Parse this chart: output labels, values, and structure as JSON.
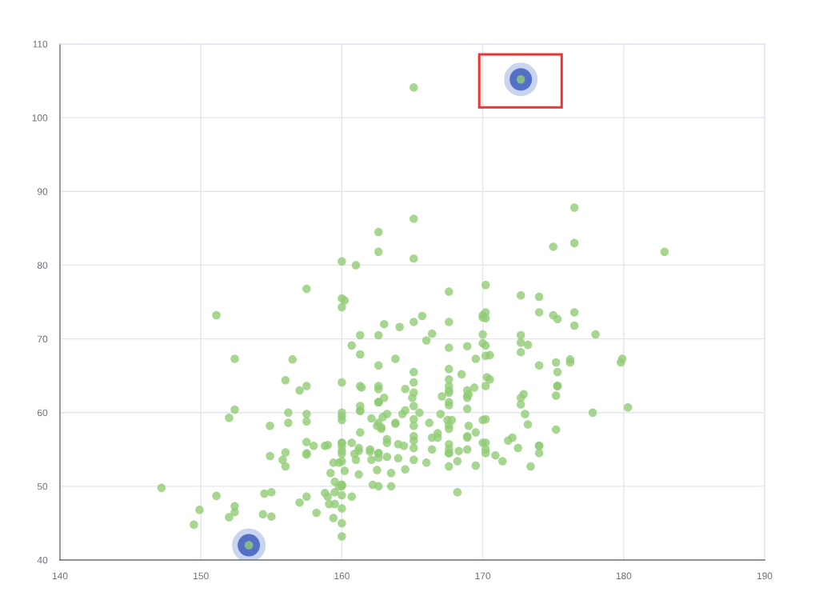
{
  "chart_data": {
    "type": "scatter",
    "xlim": [
      140,
      190
    ],
    "ylim": [
      40,
      110
    ],
    "xticks": [
      140,
      150,
      160,
      170,
      180,
      190
    ],
    "yticks": [
      40,
      50,
      60,
      70,
      80,
      90,
      100,
      110
    ],
    "grid": true,
    "marker": "circle",
    "series": [
      {
        "color": "#5470c6",
        "x": [
          172.7,
          153.4
        ],
        "values": [
          105.2,
          42.0
        ]
      },
      {
        "color": "#91cc75",
        "x": [
          161.2,
          167.5,
          159.5,
          157.0,
          155.8,
          170.0,
          159.1,
          166.0,
          176.2,
          160.2,
          172.5,
          170.9,
          172.9,
          153.4,
          160.0,
          147.2,
          168.2,
          175.0,
          157.0,
          167.6,
          159.5,
          175.0,
          166.8,
          176.5,
          170.2,
          174.0,
          173.0,
          179.9,
          170.5,
          160.0,
          154.4,
          162.0,
          176.5,
          160.0,
          152.0,
          162.1,
          170.0,
          160.2,
          161.3,
          166.4,
          168.9,
          163.8,
          167.6,
          160.0,
          161.3,
          167.6,
          165.1,
          160.0,
          170.0,
          157.5,
          167.6,
          160.7,
          163.2,
          152.4,
          157.5,
          168.3,
          180.3,
          165.5,
          165.0,
          164.5,
          156.0,
          160.0,
          163.0,
          165.7,
          161.0,
          162.0,
          166.0,
          174.0,
          172.7,
          167.6,
          151.1,
          164.5,
          163.5,
          152.0,
          169.0,
          164.0,
          161.2,
          155.0,
          170.0,
          176.2,
          170.0,
          162.5,
          170.3,
          164.1,
          169.5,
          163.2,
          154.5,
          159.8,
          173.2,
          170.0,
          161.4,
          169.0,
          166.2,
          159.4,
          162.5,
          159.0,
          162.8,
          159.0,
          179.8,
          162.9,
          161.0,
          151.1,
          168.2,
          168.9,
          173.2,
          171.8,
          178.0,
          164.3,
          163.0,
          168.5,
          166.8,
          172.7,
          163.5,
          169.4,
          167.8,
          159.5,
          167.6,
          161.2,
          160.0,
          163.2,
          162.2,
          161.3,
          149.5,
          157.5,
          163.2,
          172.7,
          155.0,
          156.5,
          164.0,
          160.9,
          162.8,
          167.0,
          160.0,
          160.0,
          168.9,
          158.2,
          156.0,
          160.0,
          167.1,
          158.0,
          167.6,
          156.0,
          162.1,
          173.4,
          159.8,
          170.5,
          159.2,
          157.5,
          161.3,
          162.6,
          160.0,
          168.9,
          165.1,
          162.6,
          165.1,
          166.4,
          160.0,
          152.4,
          170.2,
          162.6,
          170.2,
          158.8,
          172.7,
          167.6,
          162.6,
          167.6,
          156.2,
          175.2,
          172.1,
          162.6,
          160.0,
          165.1,
          182.9,
          166.4,
          165.1,
          177.8,
          165.1,
          175.3,
          154.9,
          158.8,
          172.7,
          168.9,
          161.3,
          167.6,
          165.1,
          175.3,
          157.5,
          163.8,
          167.6,
          165.1,
          165.1,
          168.9,
          162.6,
          164.5,
          176.5,
          168.9,
          175.3,
          159.4,
          160.0,
          170.2,
          162.6,
          167.6,
          162.6,
          160.7,
          160.0,
          157.5,
          162.6,
          152.4,
          170.2,
          165.1,
          172.7,
          165.1,
          170.2,
          170.2,
          170.2,
          161.3,
          167.6,
          167.6,
          165.1,
          162.6,
          152.4,
          168.9,
          170.2,
          175.2,
          175.2,
          160.0,
          165.1,
          174.0,
          170.2,
          160.0,
          167.6,
          167.6,
          167.6,
          154.9,
          162.6,
          175.3,
          171.4,
          157.5,
          165.1,
          160.0,
          174.0,
          162.6,
          174.0,
          162.6,
          161.3,
          156.2,
          149.9,
          169.5,
          160.0,
          175.3,
          169.5,
          160.0,
          172.7,
          162.6,
          157.5,
          176.5,
          164.4,
          160.7,
          174.0,
          163.8
        ],
        "values": [
          51.6,
          59.0,
          49.2,
          63.0,
          53.6,
          59.0,
          47.6,
          69.8,
          66.8,
          75.2,
          55.2,
          54.2,
          62.5,
          42.0,
          50.0,
          49.8,
          49.2,
          73.2,
          47.8,
          68.8,
          50.6,
          82.5,
          57.2,
          87.8,
          72.8,
          54.5,
          59.8,
          67.3,
          67.8,
          47.0,
          46.2,
          55.0,
          83.0,
          54.4,
          45.8,
          53.6,
          73.2,
          52.1,
          67.9,
          56.6,
          62.3,
          58.5,
          54.5,
          50.2,
          60.3,
          58.3,
          56.2,
          50.2,
          72.9,
          59.8,
          61.0,
          69.1,
          55.9,
          46.5,
          54.3,
          54.8,
          60.7,
          60.0,
          62.0,
          60.3,
          52.7,
          74.3,
          62.0,
          73.1,
          80.0,
          54.7,
          53.2,
          75.7,
          61.1,
          55.7,
          48.7,
          52.3,
          50.0,
          59.3,
          62.5,
          55.7,
          54.8,
          45.9,
          70.6,
          67.2,
          69.4,
          58.2,
          64.8,
          71.6,
          52.8,
          59.8,
          49.0,
          50.0,
          69.2,
          55.9,
          63.4,
          58.2,
          58.6,
          45.7,
          52.2,
          48.6,
          57.8,
          55.6,
          66.8,
          59.4,
          53.6,
          73.2,
          53.4,
          69.0,
          58.4,
          56.2,
          70.6,
          59.8,
          72.0,
          65.2,
          56.6,
          105.2,
          51.8,
          63.4,
          59.0,
          47.6,
          63.0,
          55.2,
          45.0,
          54.0,
          50.2,
          60.2,
          44.8,
          58.8,
          56.4,
          62.0,
          49.2,
          67.2,
          53.8,
          54.4,
          58.0,
          59.8,
          54.8,
          43.2,
          60.5,
          46.4,
          64.4,
          48.8,
          62.2,
          55.5,
          57.8,
          54.6,
          59.2,
          52.7,
          53.2,
          64.5,
          51.8,
          56.0,
          63.6,
          63.2,
          59.5,
          56.8,
          64.1,
          50.0,
          72.3,
          55.0,
          55.9,
          60.4,
          69.1,
          84.5,
          55.9,
          55.5,
          69.5,
          76.4,
          61.4,
          65.9,
          58.6,
          66.8,
          56.6,
          58.6,
          55.9,
          59.1,
          81.8,
          70.7,
          56.8,
          60.0,
          58.2,
          72.7,
          54.1,
          49.1,
          75.9,
          55.0,
          57.3,
          55.0,
          65.5,
          65.5,
          48.6,
          58.6,
          63.6,
          55.2,
          62.7,
          56.6,
          53.9,
          63.2,
          73.6,
          62.0,
          63.6,
          53.2,
          53.4,
          55.0,
          70.5,
          54.5,
          54.5,
          55.9,
          59.0,
          63.6,
          54.5,
          47.3,
          67.7,
          80.9,
          70.5,
          60.9,
          63.6,
          54.5,
          59.1,
          70.5,
          52.7,
          62.7,
          86.3,
          66.4,
          67.3,
          63.0,
          73.6,
          62.3,
          57.7,
          55.4,
          104.1,
          55.5,
          77.3,
          80.5,
          64.5,
          72.3,
          61.4,
          58.2,
          81.8,
          63.6,
          53.4,
          54.5,
          53.6,
          60.0,
          73.6,
          61.4,
          55.5,
          63.6,
          60.9,
          60.0,
          46.8,
          57.3,
          64.1,
          63.6,
          67.3,
          75.5,
          68.2,
          61.4,
          76.8,
          71.8,
          55.5,
          48.6,
          66.4,
          67.3
        ]
      }
    ]
  }
}
